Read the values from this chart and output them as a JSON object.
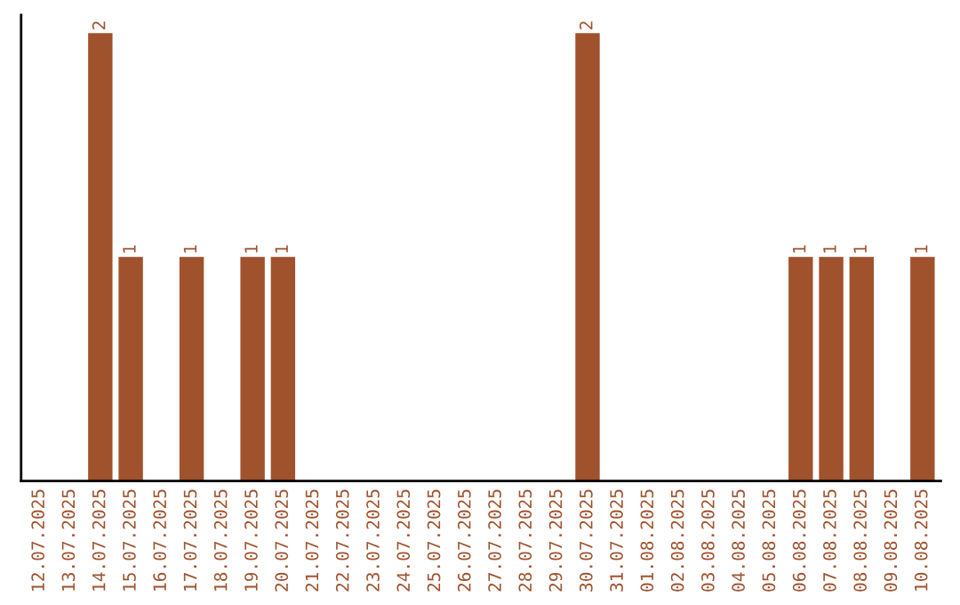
{
  "chart_data": {
    "type": "bar",
    "categories": [
      "12.07.2025",
      "13.07.2025",
      "14.07.2025",
      "15.07.2025",
      "16.07.2025",
      "17.07.2025",
      "18.07.2025",
      "19.07.2025",
      "20.07.2025",
      "21.07.2025",
      "22.07.2025",
      "23.07.2025",
      "24.07.2025",
      "25.07.2025",
      "26.07.2025",
      "27.07.2025",
      "28.07.2025",
      "29.07.2025",
      "30.07.2025",
      "31.07.2025",
      "01.08.2025",
      "02.08.2025",
      "03.08.2025",
      "04.08.2025",
      "05.08.2025",
      "06.08.2025",
      "07.08.2025",
      "08.08.2025",
      "09.08.2025",
      "10.08.2025"
    ],
    "values": [
      0,
      0,
      2,
      1,
      0,
      1,
      0,
      1,
      1,
      0,
      0,
      0,
      0,
      0,
      0,
      0,
      0,
      0,
      2,
      0,
      0,
      0,
      0,
      0,
      0,
      1,
      1,
      1,
      0,
      1
    ],
    "value_labels": [
      null,
      null,
      "2",
      "1",
      null,
      "1",
      null,
      "1",
      "1",
      null,
      null,
      null,
      null,
      null,
      null,
      null,
      null,
      null,
      "2",
      null,
      null,
      null,
      null,
      null,
      null,
      "1",
      "1",
      "1",
      null,
      "1"
    ],
    "color": "#a0522d",
    "tick_labels": "x",
    "grid": false,
    "legend": false
  }
}
